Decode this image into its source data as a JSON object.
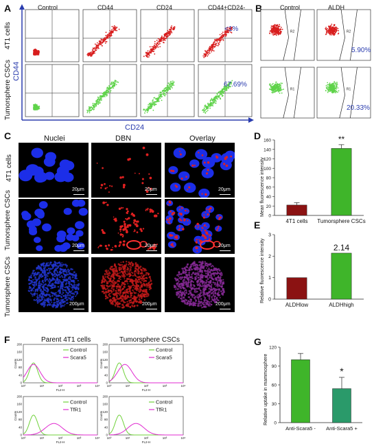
{
  "panel_letters": {
    "a": "A",
    "b": "B",
    "c": "C",
    "d": "D",
    "e": "E",
    "f": "F",
    "g": "G"
  },
  "panel_a": {
    "columns": [
      "Control",
      "CD44",
      "CD24",
      "CD44+CD24-"
    ],
    "rows": [
      "4T1 cells",
      "Tumorsphere CSCs"
    ],
    "y_axis": "CD44",
    "x_axis": "CD24",
    "annotations": {
      "top_right": "<1%",
      "bottom_right": "67.69%"
    },
    "colors": {
      "top": "#d81e1e",
      "bottom": "#5fd34a",
      "text": "#2a3cae"
    }
  },
  "panel_b": {
    "columns": [
      "Control",
      "ALDH"
    ],
    "gates": {
      "top": "R2",
      "bottom": "R1"
    },
    "annotations": {
      "top_right": "5.90%",
      "bottom_right": "20.33%"
    }
  },
  "panel_c": {
    "columns": [
      "Nuclei",
      "DBN",
      "Overlay"
    ],
    "rows": [
      "4T1 cells",
      "Tumorsphere CSCs",
      "Tumorsphere CSCs"
    ],
    "scale_bars": [
      "20μm",
      "20μm",
      "200μm"
    ]
  },
  "panel_f": {
    "titles": [
      "Parent 4T1 cells",
      "Tumorsphere CSCs"
    ],
    "x_axis": "FL2-H",
    "y_axis": "Counts",
    "legends_top": [
      "Control",
      "Scara5"
    ],
    "legends_bottom": [
      "Control",
      "TfR1"
    ],
    "x_ticks": [
      "10⁰",
      "10¹",
      "10²",
      "10³",
      "10⁴"
    ],
    "y_ticks": [
      "0",
      "40",
      "80",
      "120",
      "160",
      "200"
    ]
  },
  "chart_data": [
    {
      "id": "D",
      "type": "bar",
      "categories": [
        "4T1 cells",
        "Tumorsphere CSCs"
      ],
      "values": [
        22,
        142
      ],
      "errors": [
        5,
        8
      ],
      "colors": [
        "#8b1212",
        "#3fb52a"
      ],
      "ylabel": "Mean fluorescence intensity",
      "ylim": [
        0,
        160
      ],
      "yticks": [
        0,
        20,
        40,
        60,
        80,
        100,
        120,
        140,
        160
      ],
      "annotation": "**"
    },
    {
      "id": "E",
      "type": "bar",
      "categories": [
        "ALDHlow",
        "ALDHhigh"
      ],
      "values": [
        1.0,
        2.14
      ],
      "colors": [
        "#8b1212",
        "#3fb52a"
      ],
      "ylabel": "Relative fluorescence intensity",
      "ylim": [
        0,
        3
      ],
      "yticks": [
        0,
        1,
        2,
        3
      ],
      "annotation": "2.14"
    },
    {
      "id": "G",
      "type": "bar",
      "categories": [
        "Anti-Scara5 -",
        "Anti-Scara5 +"
      ],
      "values": [
        100,
        54
      ],
      "errors": [
        10,
        18
      ],
      "colors": [
        "#3fb52a",
        "#2a9a6a"
      ],
      "ylabel": "Relative uptake in mammosphere",
      "ylim": [
        0,
        120
      ],
      "yticks": [
        0,
        30,
        60,
        90,
        120
      ],
      "annotation": "*"
    }
  ]
}
